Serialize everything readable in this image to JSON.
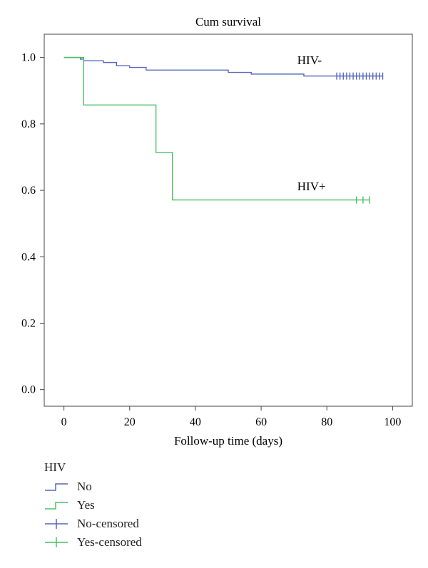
{
  "chart_data": {
    "type": "line",
    "subtype": "kaplan-meier step",
    "title": "Cum survival",
    "xlabel": "Follow-up time (days)",
    "ylabel": "",
    "xlim": [
      -6,
      106
    ],
    "ylim": [
      -0.05,
      1.07
    ],
    "xticks": [
      0,
      20,
      40,
      60,
      80,
      100
    ],
    "yticks": [
      0.0,
      0.2,
      0.4,
      0.6,
      0.8,
      1.0
    ],
    "xtick_labels": [
      "0",
      "20",
      "40",
      "60",
      "80",
      "100"
    ],
    "ytick_labels": [
      "0.0",
      "0.2",
      "0.4",
      "0.6",
      "0.8",
      "1.0"
    ],
    "grid": false,
    "series": [
      {
        "name": "No",
        "color": "#5566bb",
        "step_x": [
          0,
          5,
          6,
          12,
          16,
          20,
          25,
          50,
          57,
          73,
          97
        ],
        "step_y": [
          1.0,
          0.995,
          0.99,
          0.985,
          0.975,
          0.97,
          0.962,
          0.955,
          0.95,
          0.944,
          0.944
        ],
        "censored_x": [
          83,
          84,
          85,
          86,
          87,
          88,
          89,
          90,
          91,
          92,
          93,
          94,
          95,
          96,
          97
        ],
        "censored_y": 0.944
      },
      {
        "name": "Yes",
        "color": "#4cc060",
        "step_x": [
          0,
          6,
          28,
          33,
          93
        ],
        "step_y": [
          1.0,
          0.857,
          0.714,
          0.571,
          0.571
        ],
        "censored_x": [
          89,
          91,
          93
        ],
        "censored_y": 0.571
      }
    ],
    "annotations": [
      {
        "text": "HIV-",
        "x": 71,
        "y": 0.98
      },
      {
        "text": "HIV+",
        "x": 71,
        "y": 0.6
      }
    ],
    "legend": {
      "title": "HIV",
      "placement": "below",
      "items": [
        {
          "label": "No",
          "kind": "step",
          "color": "#5566bb"
        },
        {
          "label": "Yes",
          "kind": "step",
          "color": "#4cc060"
        },
        {
          "label": "No-censored",
          "kind": "censor",
          "color": "#5566bb"
        },
        {
          "label": "Yes-censored",
          "kind": "censor",
          "color": "#4cc060"
        }
      ]
    }
  }
}
